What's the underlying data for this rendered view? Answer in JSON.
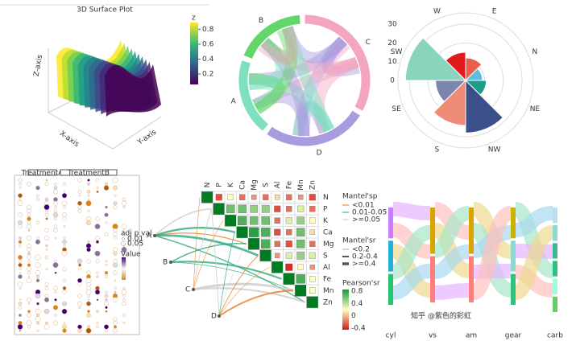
{
  "chart_data": [
    {
      "type": "surface",
      "title": "3D Surface Plot",
      "xlabel": "X-axis",
      "ylabel": "Y-axis",
      "zlabel": "Z-axis",
      "colorbar_title": "z",
      "colorbar_lim": [
        0.06,
        0.89
      ],
      "colorbar_ticks": [
        0.2,
        0.4,
        0.6,
        0.8
      ]
    },
    {
      "type": "chord",
      "categories": [
        "C",
        "D",
        "A",
        "B"
      ],
      "values": [
        120,
        95,
        70,
        65
      ],
      "colors": [
        "#f4a6c0",
        "#a99be0",
        "#7fe0c0",
        "#63d66a"
      ]
    },
    {
      "type": "polar-bar",
      "categories": [
        "W",
        "E",
        "N",
        "NE",
        "NW",
        "S",
        "SE",
        "SW"
      ],
      "values": [
        15,
        12,
        9,
        11,
        28,
        24,
        16,
        32
      ],
      "colors": [
        "#e31a1c",
        "#e8604c",
        "#5bc0de",
        "#1a9e8a",
        "#3b4f8a",
        "#ee8c78",
        "#7a86ab",
        "#88d4bd"
      ],
      "ylim": [
        0,
        36
      ],
      "yticks": [
        0,
        10,
        20,
        30
      ]
    },
    {
      "type": "dot-matrix",
      "facets": [
        "TreatmentA",
        "TreatmentB"
      ],
      "size_legend_title": "adj p val",
      "size_legend_labels": [
        "0.01",
        "0.05"
      ],
      "color_legend_title": "Value"
    },
    {
      "type": "mantel-heatmap",
      "variables": [
        "N",
        "P",
        "K",
        "Ca",
        "Mg",
        "S",
        "Al",
        "Fe",
        "Mn",
        "Zn"
      ],
      "groups": [
        "A",
        "B",
        "C",
        "D"
      ],
      "matrix": [
        [
          1,
          -0.3,
          0.2,
          -0.2,
          -0.1,
          -0.2,
          0.1,
          -0.2,
          -0.1,
          -0.3
        ],
        [
          null,
          1,
          0.6,
          0.6,
          0.5,
          0.5,
          -0.3,
          -0.2,
          0.3,
          -0.2
        ],
        [
          null,
          null,
          1,
          0.7,
          0.6,
          0.6,
          -0.2,
          0.3,
          0.5,
          0.2
        ],
        [
          null,
          null,
          null,
          1,
          0.8,
          0.7,
          -0.3,
          -0.2,
          0.6,
          0.1
        ],
        [
          null,
          null,
          null,
          null,
          1,
          0.7,
          -0.2,
          -0.3,
          0.6,
          -0.2
        ],
        [
          null,
          null,
          null,
          null,
          null,
          1,
          -0.1,
          0.3,
          0.5,
          0.3
        ],
        [
          null,
          null,
          null,
          null,
          null,
          null,
          1,
          -0.4,
          0.2,
          -0.1
        ],
        [
          null,
          null,
          null,
          null,
          null,
          null,
          null,
          1,
          0.7,
          0.2
        ],
        [
          null,
          null,
          null,
          null,
          null,
          null,
          null,
          null,
          1,
          0.2
        ],
        [
          null,
          null,
          null,
          null,
          null,
          null,
          null,
          null,
          null,
          1
        ]
      ],
      "mantel_p_title": "Mantel'sp",
      "mantel_p_labels": [
        "<0.01",
        "0.01-0.05",
        ">=0.05"
      ],
      "mantel_r_title": "Mantel'sr",
      "mantel_r_labels": [
        "<0.2",
        "0.2-0.4",
        ">=0.4"
      ],
      "colorbar_title": "Pearson'sr",
      "colorbar_lim": [
        -0.45,
        0.85
      ],
      "colorbar_ticks": [
        -0.4,
        0.0,
        0.4,
        0.8
      ]
    },
    {
      "type": "sankey",
      "categories": [
        "cyl",
        "vs",
        "am",
        "gear",
        "carb"
      ],
      "watermark": "知乎 @紫色的彩虹"
    }
  ]
}
